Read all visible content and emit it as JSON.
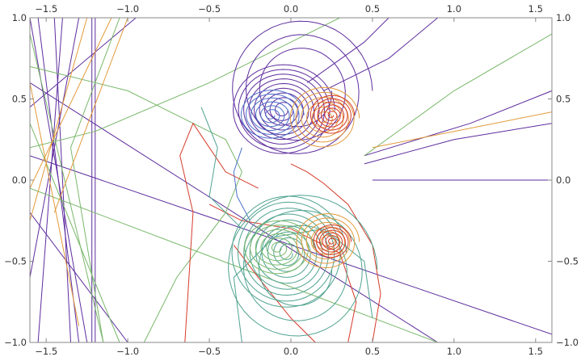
{
  "chart_data": {
    "type": "line",
    "title": "",
    "xlabel": "",
    "ylabel": "",
    "xlim": [
      -1.6,
      1.6
    ],
    "ylim": [
      -1.0,
      1.0
    ],
    "grid": false,
    "x_tick_labels": [
      "−1.5",
      "−1.0",
      "−0.5",
      "0.0",
      "0.5",
      "1.0",
      "1.5"
    ],
    "x_tick_values": [
      -1.5,
      -1.0,
      -0.5,
      0.0,
      0.5,
      1.0,
      1.5
    ],
    "y_tick_labels": [
      "−1.0",
      "−0.5",
      "0.0",
      "0.5",
      "1.0"
    ],
    "y_tick_values": [
      -1.0,
      -0.5,
      0.0,
      0.5,
      1.0
    ],
    "colors": {
      "purple": "#5e2d9e",
      "blue": "#4b6fc9",
      "teal": "#4fa390",
      "green": "#79b86a",
      "orange": "#e39a3a",
      "red": "#d63a2a"
    },
    "series": [
      {
        "color": "purple",
        "points": [
          [
            -1.6,
            1.0
          ],
          [
            -1.25,
            -1.0
          ]
        ]
      },
      {
        "color": "purple",
        "points": [
          [
            -1.55,
            1.0
          ],
          [
            -1.3,
            -1.0
          ]
        ]
      },
      {
        "color": "purple",
        "points": [
          [
            -1.45,
            1.0
          ],
          [
            -1.35,
            -1.0
          ]
        ]
      },
      {
        "color": "purple",
        "points": [
          [
            -1.4,
            1.0
          ],
          [
            -1.55,
            -1.0
          ]
        ]
      },
      {
        "color": "purple",
        "points": [
          [
            -1.3,
            1.0
          ],
          [
            -1.6,
            -0.6
          ]
        ]
      },
      {
        "color": "purple",
        "points": [
          [
            -1.22,
            1.0
          ],
          [
            -1.22,
            -1.0
          ]
        ]
      },
      {
        "color": "purple",
        "points": [
          [
            -1.2,
            1.0
          ],
          [
            -1.2,
            -1.0
          ]
        ]
      },
      {
        "color": "purple",
        "points": [
          [
            -1.6,
            0.6
          ],
          [
            0.9,
            -1.0
          ]
        ]
      },
      {
        "color": "purple",
        "points": [
          [
            -1.6,
            0.15
          ],
          [
            1.6,
            -0.95
          ]
        ]
      },
      {
        "color": "purple",
        "points": [
          [
            -1.6,
            -0.2
          ],
          [
            -1.0,
            -1.0
          ]
        ]
      },
      {
        "color": "purple",
        "points": [
          [
            -0.95,
            1.0
          ],
          [
            -1.6,
            0.45
          ]
        ]
      },
      {
        "color": "purple",
        "points": [
          [
            0.45,
            0.15
          ],
          [
            1.1,
            0.35
          ],
          [
            1.6,
            0.55
          ]
        ]
      },
      {
        "color": "purple",
        "points": [
          [
            0.45,
            0.1
          ],
          [
            1.0,
            0.25
          ],
          [
            1.6,
            0.35
          ]
        ]
      },
      {
        "color": "purple",
        "points": [
          [
            0.5,
            0.0
          ],
          [
            1.6,
            0.0
          ]
        ]
      },
      {
        "color": "purple",
        "points": [
          [
            0.2,
            0.55
          ],
          [
            0.6,
            0.75
          ],
          [
            0.9,
            1.0
          ]
        ]
      },
      {
        "color": "purple",
        "points": [
          [
            0.1,
            0.6
          ],
          [
            0.45,
            0.85
          ],
          [
            0.6,
            1.0
          ]
        ]
      },
      {
        "color": "green",
        "points": [
          [
            -1.6,
            0.9
          ],
          [
            -1.15,
            -1.0
          ]
        ]
      },
      {
        "color": "green",
        "points": [
          [
            -1.6,
            0.35
          ],
          [
            -1.05,
            -1.0
          ]
        ]
      },
      {
        "color": "green",
        "points": [
          [
            -1.15,
            -1.0
          ],
          [
            -1.35,
            0.2
          ],
          [
            -1.05,
            1.0
          ]
        ]
      },
      {
        "color": "green",
        "points": [
          [
            -1.6,
            -0.05
          ],
          [
            0.9,
            -1.0
          ]
        ]
      },
      {
        "color": "green",
        "points": [
          [
            -1.6,
            0.2
          ],
          [
            -1.2,
            0.3
          ],
          [
            -0.5,
            0.6
          ],
          [
            0.1,
            0.9
          ],
          [
            0.3,
            1.0
          ]
        ]
      },
      {
        "color": "green",
        "points": [
          [
            0.45,
            0.15
          ],
          [
            1.0,
            0.55
          ],
          [
            1.6,
            0.9
          ]
        ]
      },
      {
        "color": "green",
        "points": [
          [
            -1.6,
            0.7
          ],
          [
            -1.0,
            0.55
          ],
          [
            -0.4,
            0.25
          ],
          [
            -0.3,
            0.05
          ],
          [
            -0.4,
            -0.2
          ],
          [
            -0.7,
            -0.6
          ],
          [
            -0.9,
            -1.0
          ]
        ]
      },
      {
        "color": "orange",
        "points": [
          [
            -1.6,
            -0.05
          ],
          [
            -1.1,
            1.0
          ]
        ]
      },
      {
        "color": "orange",
        "points": [
          [
            -1.6,
            -0.25
          ],
          [
            -1.25,
            1.0
          ]
        ]
      },
      {
        "color": "orange",
        "points": [
          [
            -1.6,
            0.6
          ],
          [
            -1.3,
            -0.9
          ]
        ]
      },
      {
        "color": "orange",
        "points": [
          [
            0.5,
            0.2
          ],
          [
            1.0,
            0.3
          ],
          [
            1.6,
            0.42
          ]
        ]
      },
      {
        "color": "orange",
        "points": [
          [
            -1.0,
            1.0
          ],
          [
            -1.45,
            -0.2
          ]
        ]
      },
      {
        "color": "red",
        "points": [
          [
            -0.65,
            -1.0
          ],
          [
            -0.6,
            -0.2
          ],
          [
            -0.68,
            0.15
          ],
          [
            -0.6,
            0.35
          ],
          [
            -0.4,
            0.05
          ],
          [
            -0.2,
            -0.05
          ]
        ]
      },
      {
        "color": "red",
        "points": [
          [
            -0.5,
            -0.15
          ],
          [
            -0.3,
            -0.25
          ],
          [
            0.0,
            -0.3
          ],
          [
            0.3,
            -0.45
          ],
          [
            0.4,
            -0.75
          ],
          [
            0.35,
            -1.0
          ]
        ]
      },
      {
        "color": "red",
        "points": [
          [
            -0.35,
            -0.4
          ],
          [
            -0.2,
            -0.6
          ],
          [
            0.0,
            -0.85
          ],
          [
            0.15,
            -1.0
          ]
        ]
      },
      {
        "color": "red",
        "points": [
          [
            0.0,
            0.1
          ],
          [
            0.1,
            0.05
          ],
          [
            0.2,
            -0.02
          ],
          [
            0.35,
            -0.15
          ],
          [
            0.5,
            -0.4
          ],
          [
            0.55,
            -0.7
          ],
          [
            0.5,
            -1.0
          ]
        ]
      },
      {
        "color": "teal",
        "points": [
          [
            -0.3,
            -1.0
          ],
          [
            -0.35,
            -0.6
          ],
          [
            -0.1,
            -0.35
          ],
          [
            0.2,
            -0.3
          ],
          [
            0.45,
            -0.5
          ],
          [
            0.5,
            -0.85
          ]
        ]
      },
      {
        "color": "teal",
        "points": [
          [
            -0.55,
            0.45
          ],
          [
            -0.45,
            0.2
          ],
          [
            -0.5,
            -0.1
          ],
          [
            -0.3,
            -0.3
          ]
        ]
      },
      {
        "color": "blue",
        "points": [
          [
            -0.3,
            0.2
          ],
          [
            -0.35,
            0.05
          ],
          [
            -0.33,
            -0.1
          ],
          [
            -0.25,
            -0.25
          ]
        ]
      }
    ],
    "spirals": [
      {
        "color": "purple",
        "center": [
          -0.05,
          0.43
        ],
        "rmax": 0.32,
        "rmin": 0.03,
        "turns": 9,
        "yscale": 0.9
      },
      {
        "color": "purple",
        "center": [
          0.05,
          0.55
        ],
        "rmax": 0.45,
        "rmin": 0.2,
        "turns": 3,
        "yscale": 1.0
      },
      {
        "color": "blue",
        "center": [
          -0.12,
          0.4
        ],
        "rmax": 0.2,
        "rmin": 0.02,
        "turns": 6,
        "yscale": 0.8
      },
      {
        "color": "orange",
        "center": [
          0.2,
          0.38
        ],
        "rmax": 0.22,
        "rmin": 0.02,
        "turns": 6,
        "yscale": 0.9
      },
      {
        "color": "red",
        "center": [
          0.25,
          0.4
        ],
        "rmax": 0.14,
        "rmin": 0.01,
        "turns": 6,
        "yscale": 0.9
      },
      {
        "color": "teal",
        "center": [
          -0.02,
          -0.45
        ],
        "rmax": 0.36,
        "rmin": 0.03,
        "turns": 9,
        "yscale": 1.0
      },
      {
        "color": "teal",
        "center": [
          0.05,
          -0.55
        ],
        "rmax": 0.48,
        "rmin": 0.2,
        "turns": 3,
        "yscale": 1.0
      },
      {
        "color": "green",
        "center": [
          -0.08,
          -0.42
        ],
        "rmax": 0.22,
        "rmin": 0.02,
        "turns": 6,
        "yscale": 0.8
      },
      {
        "color": "orange",
        "center": [
          0.22,
          -0.38
        ],
        "rmax": 0.2,
        "rmin": 0.02,
        "turns": 6,
        "yscale": 0.9
      },
      {
        "color": "red",
        "center": [
          0.25,
          -0.38
        ],
        "rmax": 0.12,
        "rmin": 0.01,
        "turns": 6,
        "yscale": 0.9
      }
    ]
  }
}
